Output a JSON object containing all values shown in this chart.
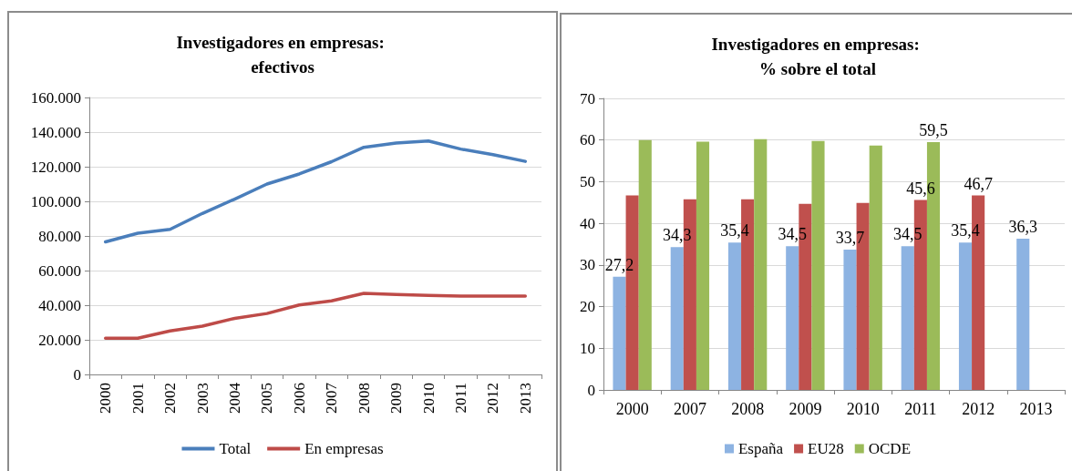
{
  "chart_data": [
    {
      "type": "line",
      "title": "Investigadores en empresas: efectivos",
      "categories": [
        "2000",
        "2001",
        "2002",
        "2003",
        "2004",
        "2005",
        "2006",
        "2007",
        "2008",
        "2009",
        "2010",
        "2011",
        "2012",
        "2013"
      ],
      "series": [
        {
          "name": "Total",
          "color": "#4a7ebb",
          "values": [
            76600,
            81600,
            83800,
            93000,
            101300,
            110000,
            115800,
            122900,
            131200,
            133700,
            134900,
            130200,
            127000,
            123100
          ]
        },
        {
          "name": "En empresas",
          "color": "#be4b48",
          "values": [
            20900,
            20900,
            25100,
            27900,
            32400,
            35200,
            40100,
            42500,
            46800,
            46200,
            45600,
            45200,
            45200,
            45200
          ]
        }
      ],
      "ylim": [
        0,
        160000
      ],
      "yticks": [
        0,
        {
          "value": 20000,
          "label": "20.000"
        },
        {
          "value": 40000,
          "label": "40.000"
        },
        {
          "value": 60000,
          "label": "60.000"
        },
        {
          "value": 80000,
          "label": "80.000"
        },
        {
          "value": 100000,
          "label": "100.000"
        },
        {
          "value": 120000,
          "label": "120.000"
        },
        {
          "value": 140000,
          "label": "140.000"
        },
        {
          "value": 160000,
          "label": "160.000"
        }
      ],
      "grid": "y",
      "legend": "bottom",
      "marker": "none"
    },
    {
      "type": "bar",
      "title": "Investigadores en empresas: % sobre el total",
      "categories": [
        "2000",
        "2007",
        "2008",
        "2009",
        "2010",
        "2011",
        "2012",
        "2013"
      ],
      "series": [
        {
          "name": "España",
          "color": "#8db3e2",
          "values": [
            27.2,
            34.3,
            35.4,
            34.5,
            33.7,
            34.5,
            35.4,
            36.3
          ],
          "value_labels": [
            "27,2",
            "34,3",
            "35,4",
            "34,5",
            "33,7",
            "34,5",
            "35,4",
            "36,3"
          ]
        },
        {
          "name": "EU28",
          "color": "#c0504d",
          "values": [
            46.7,
            45.8,
            45.8,
            44.7,
            44.9,
            45.6,
            46.7,
            null
          ],
          "value_labels": [
            null,
            null,
            null,
            null,
            null,
            "45,6",
            "46,7",
            null
          ]
        },
        {
          "name": "OCDE",
          "color": "#9bbb59",
          "values": [
            60.0,
            59.6,
            60.2,
            59.8,
            58.7,
            59.5,
            null,
            null
          ],
          "value_labels": [
            null,
            null,
            null,
            null,
            null,
            "59,5",
            null,
            null
          ]
        }
      ],
      "ylim": [
        0,
        70
      ],
      "yticks": [
        0,
        10,
        20,
        30,
        40,
        50,
        60,
        70
      ],
      "grid": "y",
      "legend": "bottom"
    }
  ]
}
